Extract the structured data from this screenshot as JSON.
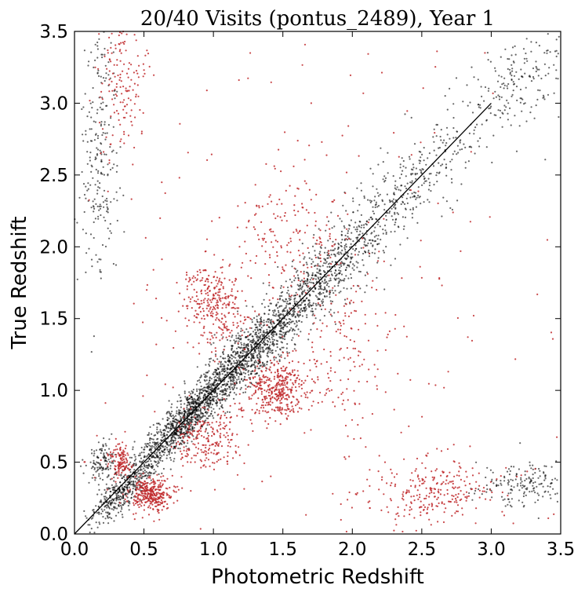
{
  "chart_data": {
    "type": "scatter",
    "title": "20/40 Visits (pontus_2489),  Year 1",
    "xlabel": "Photometric Redshift",
    "ylabel": "True Redshift",
    "xlim": [
      0.0,
      3.5
    ],
    "ylim": [
      0.0,
      3.5
    ],
    "xticks": [
      "0.0",
      "0.5",
      "1.0",
      "1.5",
      "2.0",
      "2.5",
      "3.0",
      "3.5"
    ],
    "yticks": [
      "0.0",
      "0.5",
      "1.0",
      "1.5",
      "2.0",
      "2.5",
      "3.0",
      "3.5"
    ],
    "grid": false,
    "legend": "none",
    "reference_line": {
      "x": [
        0.0,
        3.0
      ],
      "y": [
        0.0,
        3.0
      ],
      "color": "#000000"
    },
    "series": [
      {
        "color": "#000000",
        "clusters": [
          {
            "x": 0.35,
            "y": 0.3,
            "spread_along": 0.2,
            "spread_across": 0.05,
            "count": 420
          },
          {
            "x": 0.8,
            "y": 0.8,
            "spread_along": 0.25,
            "spread_across": 0.06,
            "count": 950
          },
          {
            "x": 1.25,
            "y": 1.25,
            "spread_along": 0.3,
            "spread_across": 0.08,
            "count": 1000
          },
          {
            "x": 1.8,
            "y": 1.8,
            "spread_along": 0.35,
            "spread_across": 0.1,
            "count": 650
          },
          {
            "x": 2.45,
            "y": 2.45,
            "spread_along": 0.35,
            "spread_across": 0.12,
            "count": 300
          },
          {
            "x": 3.2,
            "y": 3.15,
            "spread_along": 0.25,
            "spread_across": 0.15,
            "count": 200
          },
          {
            "x": 0.18,
            "y": 2.7,
            "spread_x": 0.07,
            "spread_y": 0.45,
            "count": 240
          },
          {
            "x": 0.2,
            "y": 0.5,
            "spread_x": 0.05,
            "spread_y": 0.08,
            "count": 120
          },
          {
            "x": 3.25,
            "y": 0.35,
            "spread_x": 0.18,
            "spread_y": 0.08,
            "count": 180
          }
        ]
      },
      {
        "color": "#c0282a",
        "clusters": [
          {
            "x": 0.55,
            "y": 0.28,
            "spread_x": 0.08,
            "spread_y": 0.06,
            "count": 340
          },
          {
            "x": 0.33,
            "y": 0.5,
            "spread_x": 0.04,
            "spread_y": 0.06,
            "count": 120
          },
          {
            "x": 0.95,
            "y": 0.65,
            "spread_x": 0.12,
            "spread_y": 0.1,
            "count": 220
          },
          {
            "x": 1.02,
            "y": 1.6,
            "spread_x": 0.12,
            "spread_y": 0.15,
            "count": 300
          },
          {
            "x": 1.45,
            "y": 1.0,
            "spread_x": 0.12,
            "spread_y": 0.1,
            "count": 380
          },
          {
            "x": 1.55,
            "y": 2.05,
            "spread_x": 0.2,
            "spread_y": 0.2,
            "count": 160
          },
          {
            "x": 1.9,
            "y": 1.3,
            "spread_x": 0.15,
            "spread_y": 0.3,
            "count": 120
          },
          {
            "x": 0.35,
            "y": 3.2,
            "spread_x": 0.08,
            "spread_y": 0.25,
            "count": 160
          },
          {
            "x": 2.6,
            "y": 0.3,
            "spread_x": 0.25,
            "spread_y": 0.12,
            "count": 260
          },
          {
            "x": 1.6,
            "y": 1.5,
            "spread_x": 0.9,
            "spread_y": 0.9,
            "count": 280
          }
        ]
      }
    ]
  }
}
